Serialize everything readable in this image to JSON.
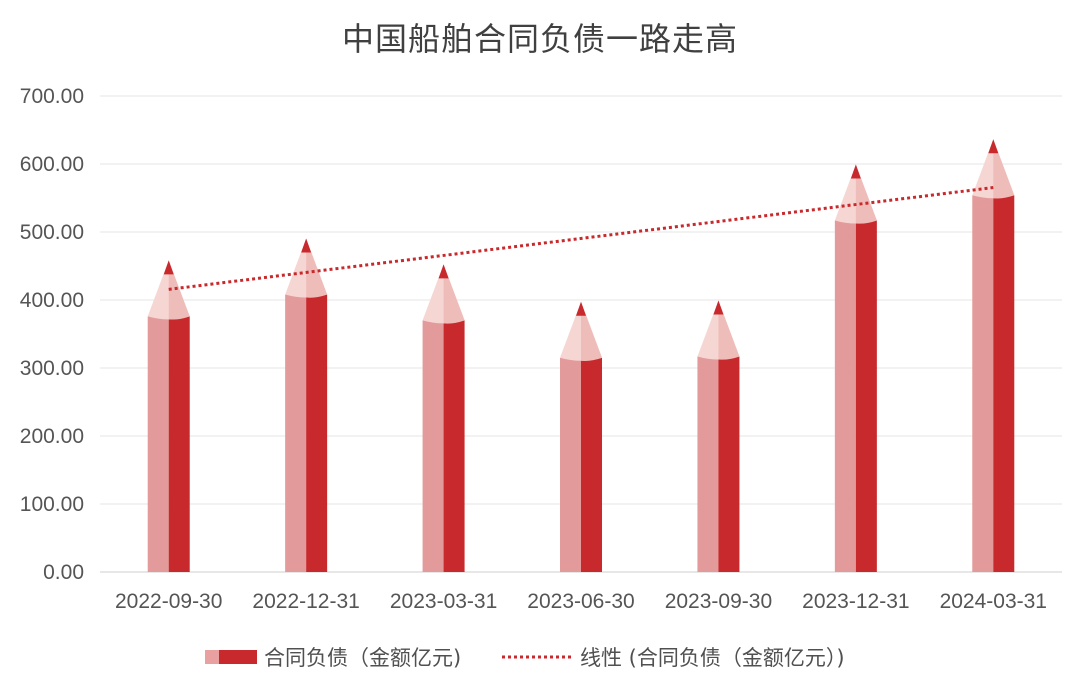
{
  "chart_data": {
    "type": "bar",
    "title": "中国船舶合同负债一路走高",
    "categories": [
      "2022-09-30",
      "2022-12-31",
      "2023-03-31",
      "2023-06-30",
      "2023-09-30",
      "2023-12-31",
      "2024-03-31"
    ],
    "series": [
      {
        "name": "合同负债（金额亿元)",
        "type": "bar",
        "values": [
          376,
          408,
          370,
          315,
          317,
          517,
          554
        ],
        "color": "#c8292c"
      },
      {
        "name": "线性 (合同负债（金额亿元）)",
        "type": "trendline-linear",
        "color": "#c8292c"
      }
    ],
    "yticks": [
      "0.00",
      "100.00",
      "200.00",
      "300.00",
      "400.00",
      "500.00",
      "600.00",
      "700.00"
    ],
    "ylim": [
      0,
      700
    ],
    "grid": true,
    "legend": "bottom",
    "bar_style": "pencil"
  }
}
